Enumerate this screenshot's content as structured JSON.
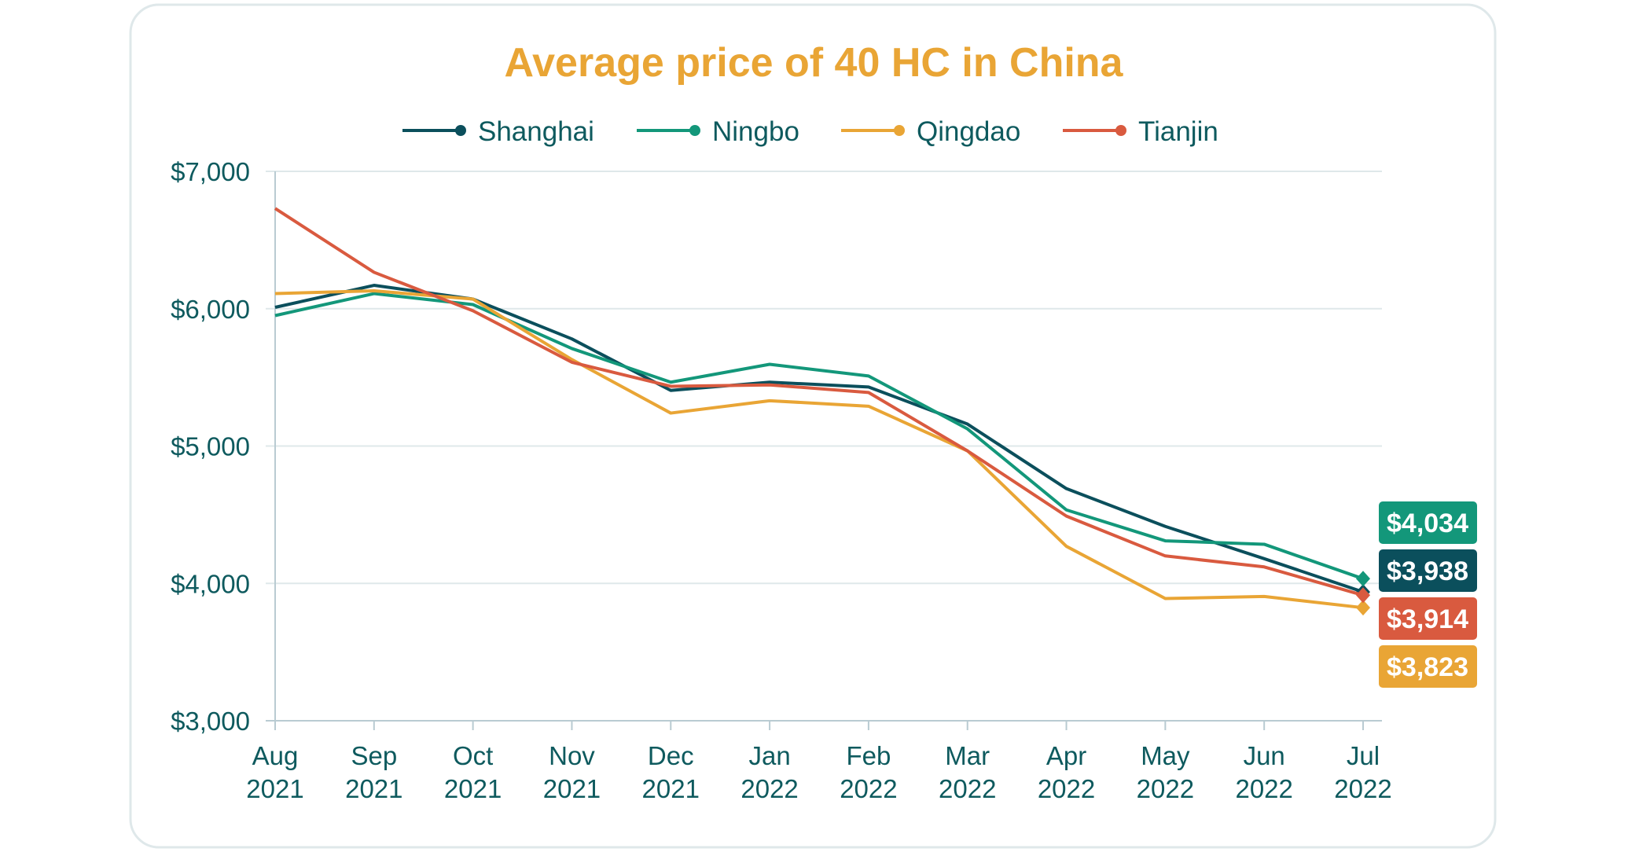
{
  "chart_data": {
    "type": "line",
    "title": "Average price of 40 HC in China",
    "xlabel": "",
    "ylabel": "",
    "ylim": [
      3000,
      7000
    ],
    "yticks": [
      "$3,000",
      "$4,000",
      "$5,000",
      "$6,000",
      "$7,000"
    ],
    "ytick_values": [
      3000,
      4000,
      5000,
      6000,
      7000
    ],
    "categories": [
      [
        "Aug",
        "2021"
      ],
      [
        "Sep",
        "2021"
      ],
      [
        "Oct",
        "2021"
      ],
      [
        "Nov",
        "2021"
      ],
      [
        "Dec",
        "2021"
      ],
      [
        "Jan",
        "2022"
      ],
      [
        "Feb",
        "2022"
      ],
      [
        "Mar",
        "2022"
      ],
      [
        "Apr",
        "2022"
      ],
      [
        "May",
        "2022"
      ],
      [
        "Jun",
        "2022"
      ],
      [
        "Jul",
        "2022"
      ]
    ],
    "legend_position": "top-center",
    "grid": true,
    "series": [
      {
        "name": "Shanghai",
        "color": "#0b4f5c",
        "values": [
          6010,
          6170,
          6070,
          5780,
          5405,
          5465,
          5430,
          5160,
          4690,
          4415,
          4180,
          3938
        ],
        "end_label": "$3,938"
      },
      {
        "name": "Ningbo",
        "color": "#13977a",
        "values": [
          5950,
          6110,
          6030,
          5710,
          5465,
          5595,
          5510,
          5125,
          4535,
          4310,
          4285,
          4034
        ],
        "end_label": "$4,034"
      },
      {
        "name": "Qingdao",
        "color": "#e9a535",
        "values": [
          6110,
          6130,
          6070,
          5630,
          5240,
          5330,
          5290,
          4965,
          4270,
          3890,
          3905,
          3823
        ],
        "end_label": "$3,823"
      },
      {
        "name": "Tianjin",
        "color": "#d95a3f",
        "values": [
          6730,
          6265,
          5985,
          5610,
          5435,
          5445,
          5390,
          4965,
          4490,
          4200,
          4120,
          3914
        ],
        "end_label": "$3,914"
      }
    ],
    "end_label_order": [
      "Ningbo",
      "Shanghai",
      "Tianjin",
      "Qingdao"
    ]
  }
}
